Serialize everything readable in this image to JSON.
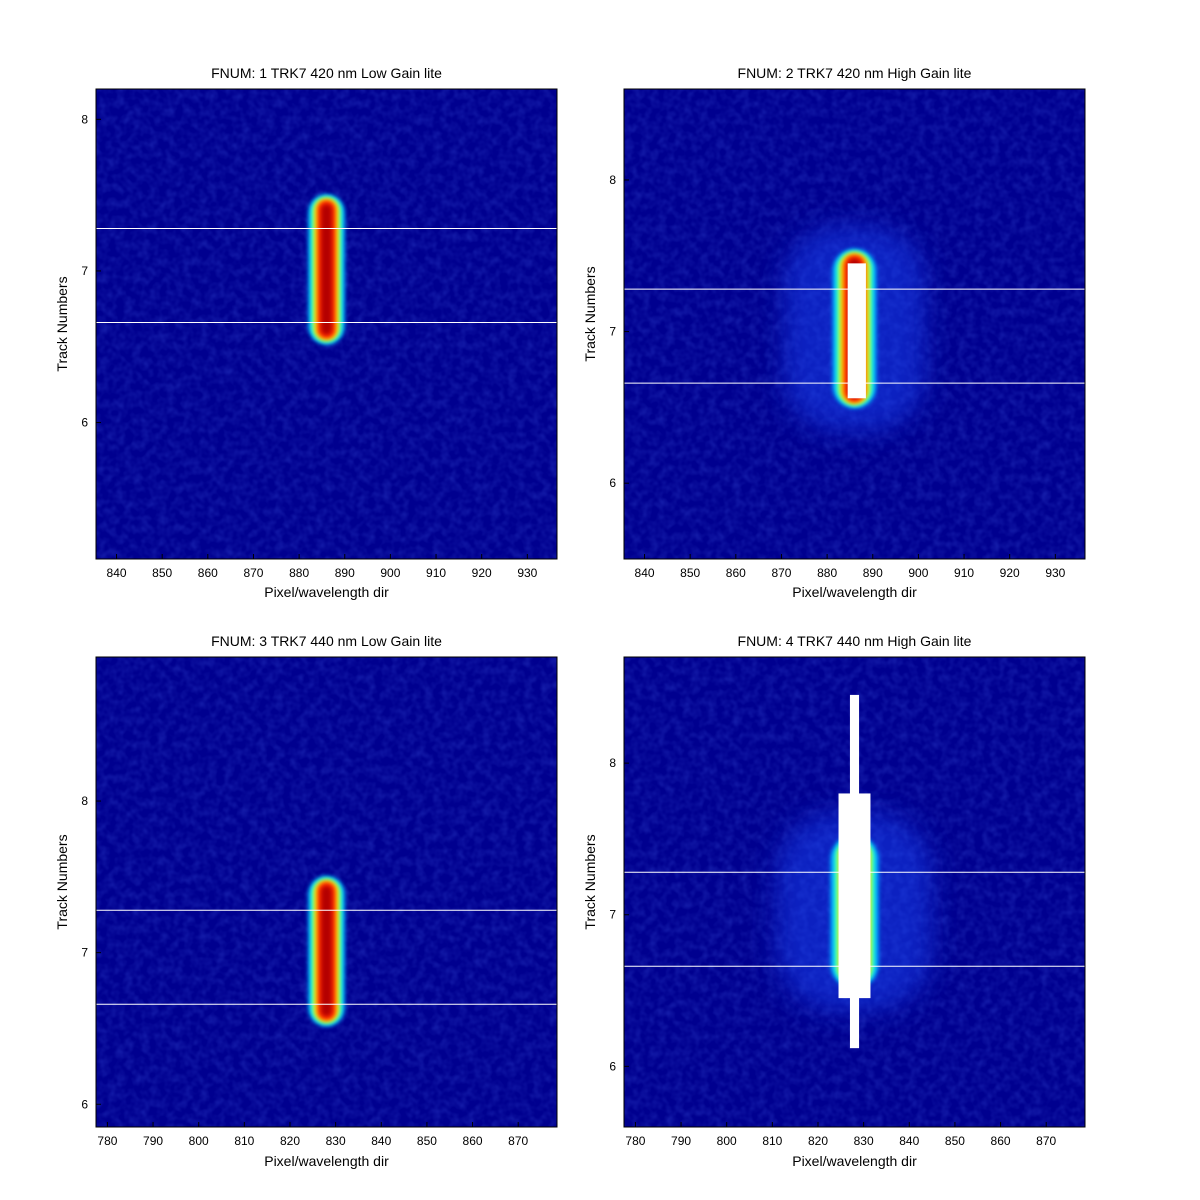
{
  "chart_data": [
    {
      "type": "heatmap",
      "title": "FNUM: 1 TRK7 420 nm Low Gain lite",
      "xlabel": "Pixel/wavelength dir",
      "ylabel": "Track Numbers",
      "xlim": [
        835.5,
        936.5
      ],
      "ylim": [
        5.1,
        8.2
      ],
      "xticks": [
        840,
        850,
        860,
        870,
        880,
        890,
        900,
        910,
        920,
        930
      ],
      "yticks": [
        6,
        7,
        8
      ],
      "colormap": "jet",
      "background_color": "#00008f",
      "spot": {
        "x_center": 886,
        "x_halfwidth": 2.6,
        "y_bottom": 6.56,
        "y_top": 7.46
      },
      "hlines": [
        7.28,
        6.66
      ],
      "saturated_marks": []
    },
    {
      "type": "heatmap",
      "title": "FNUM: 2 TRK7 420 nm High Gain lite",
      "xlabel": "Pixel/wavelength dir",
      "ylabel": "Track Numbers",
      "xlim": [
        835.5,
        936.5
      ],
      "ylim": [
        5.5,
        8.6
      ],
      "xticks": [
        840,
        850,
        860,
        870,
        880,
        890,
        900,
        910,
        920,
        930
      ],
      "yticks": [
        6,
        7,
        8
      ],
      "colormap": "jet",
      "background_color": "#00008f",
      "spot": {
        "x_center": 886,
        "x_halfwidth": 3.1,
        "y_bottom": 6.54,
        "y_top": 7.5
      },
      "hlines": [
        7.28,
        6.66
      ],
      "saturated_marks": [
        {
          "x0": 884.5,
          "x1": 888.5,
          "y0": 6.56,
          "y1": 7.45
        }
      ]
    },
    {
      "type": "heatmap",
      "title": "FNUM: 3 TRK7 440 nm Low Gain lite",
      "xlabel": "Pixel/wavelength dir",
      "ylabel": "Track Numbers",
      "xlim": [
        777.5,
        878.5
      ],
      "ylim": [
        5.85,
        8.95
      ],
      "xticks": [
        780,
        790,
        800,
        810,
        820,
        830,
        840,
        850,
        860,
        870
      ],
      "yticks": [
        6,
        7,
        8
      ],
      "colormap": "jet",
      "background_color": "#00008f",
      "spot": {
        "x_center": 828,
        "x_halfwidth": 2.6,
        "y_bottom": 6.56,
        "y_top": 7.46
      },
      "hlines": [
        7.28,
        6.66
      ],
      "saturated_marks": []
    },
    {
      "type": "heatmap",
      "title": "FNUM: 4 TRK7 440 nm High Gain lite",
      "xlabel": "Pixel/wavelength dir",
      "ylabel": "Track Numbers",
      "xlim": [
        777.5,
        878.5
      ],
      "ylim": [
        5.6,
        8.7
      ],
      "xticks": [
        780,
        790,
        800,
        810,
        820,
        830,
        840,
        850,
        860,
        870
      ],
      "yticks": [
        6,
        7,
        8
      ],
      "colormap": "jet",
      "background_color": "#00008f",
      "spot": {
        "x_center": 828,
        "x_halfwidth": 3.4,
        "y_bottom": 6.56,
        "y_top": 7.48
      },
      "hlines": [
        7.28,
        6.66
      ],
      "saturated_marks": [
        {
          "x0": 827,
          "x1": 829,
          "y0": 6.12,
          "y1": 8.45
        },
        {
          "x0": 824.5,
          "x1": 831.5,
          "y0": 6.45,
          "y1": 7.8
        }
      ]
    }
  ]
}
